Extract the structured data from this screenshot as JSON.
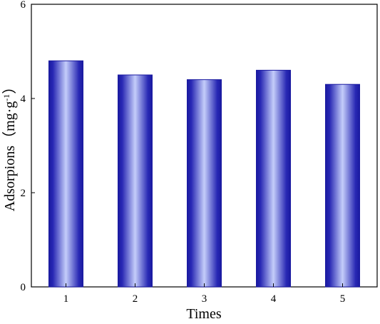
{
  "chart_data": {
    "type": "bar",
    "categories": [
      "1",
      "2",
      "3",
      "4",
      "5"
    ],
    "values": [
      4.8,
      4.5,
      4.4,
      4.6,
      4.3
    ],
    "xlabel": "Times",
    "ylabel_main": "Adsorpions（mg·g",
    "ylabel_sup": "-1",
    "ylabel_close": "）",
    "ylim": [
      0,
      6
    ],
    "yticks": [
      "0",
      "2",
      "4",
      "6"
    ],
    "ytick_values": [
      0,
      2,
      4,
      6
    ],
    "grid": false,
    "legend": "none",
    "colors": {
      "bar_edge": "#1a1aa0",
      "bar_center": "#c4cdfa",
      "bar_dark": "#2828b4"
    }
  }
}
